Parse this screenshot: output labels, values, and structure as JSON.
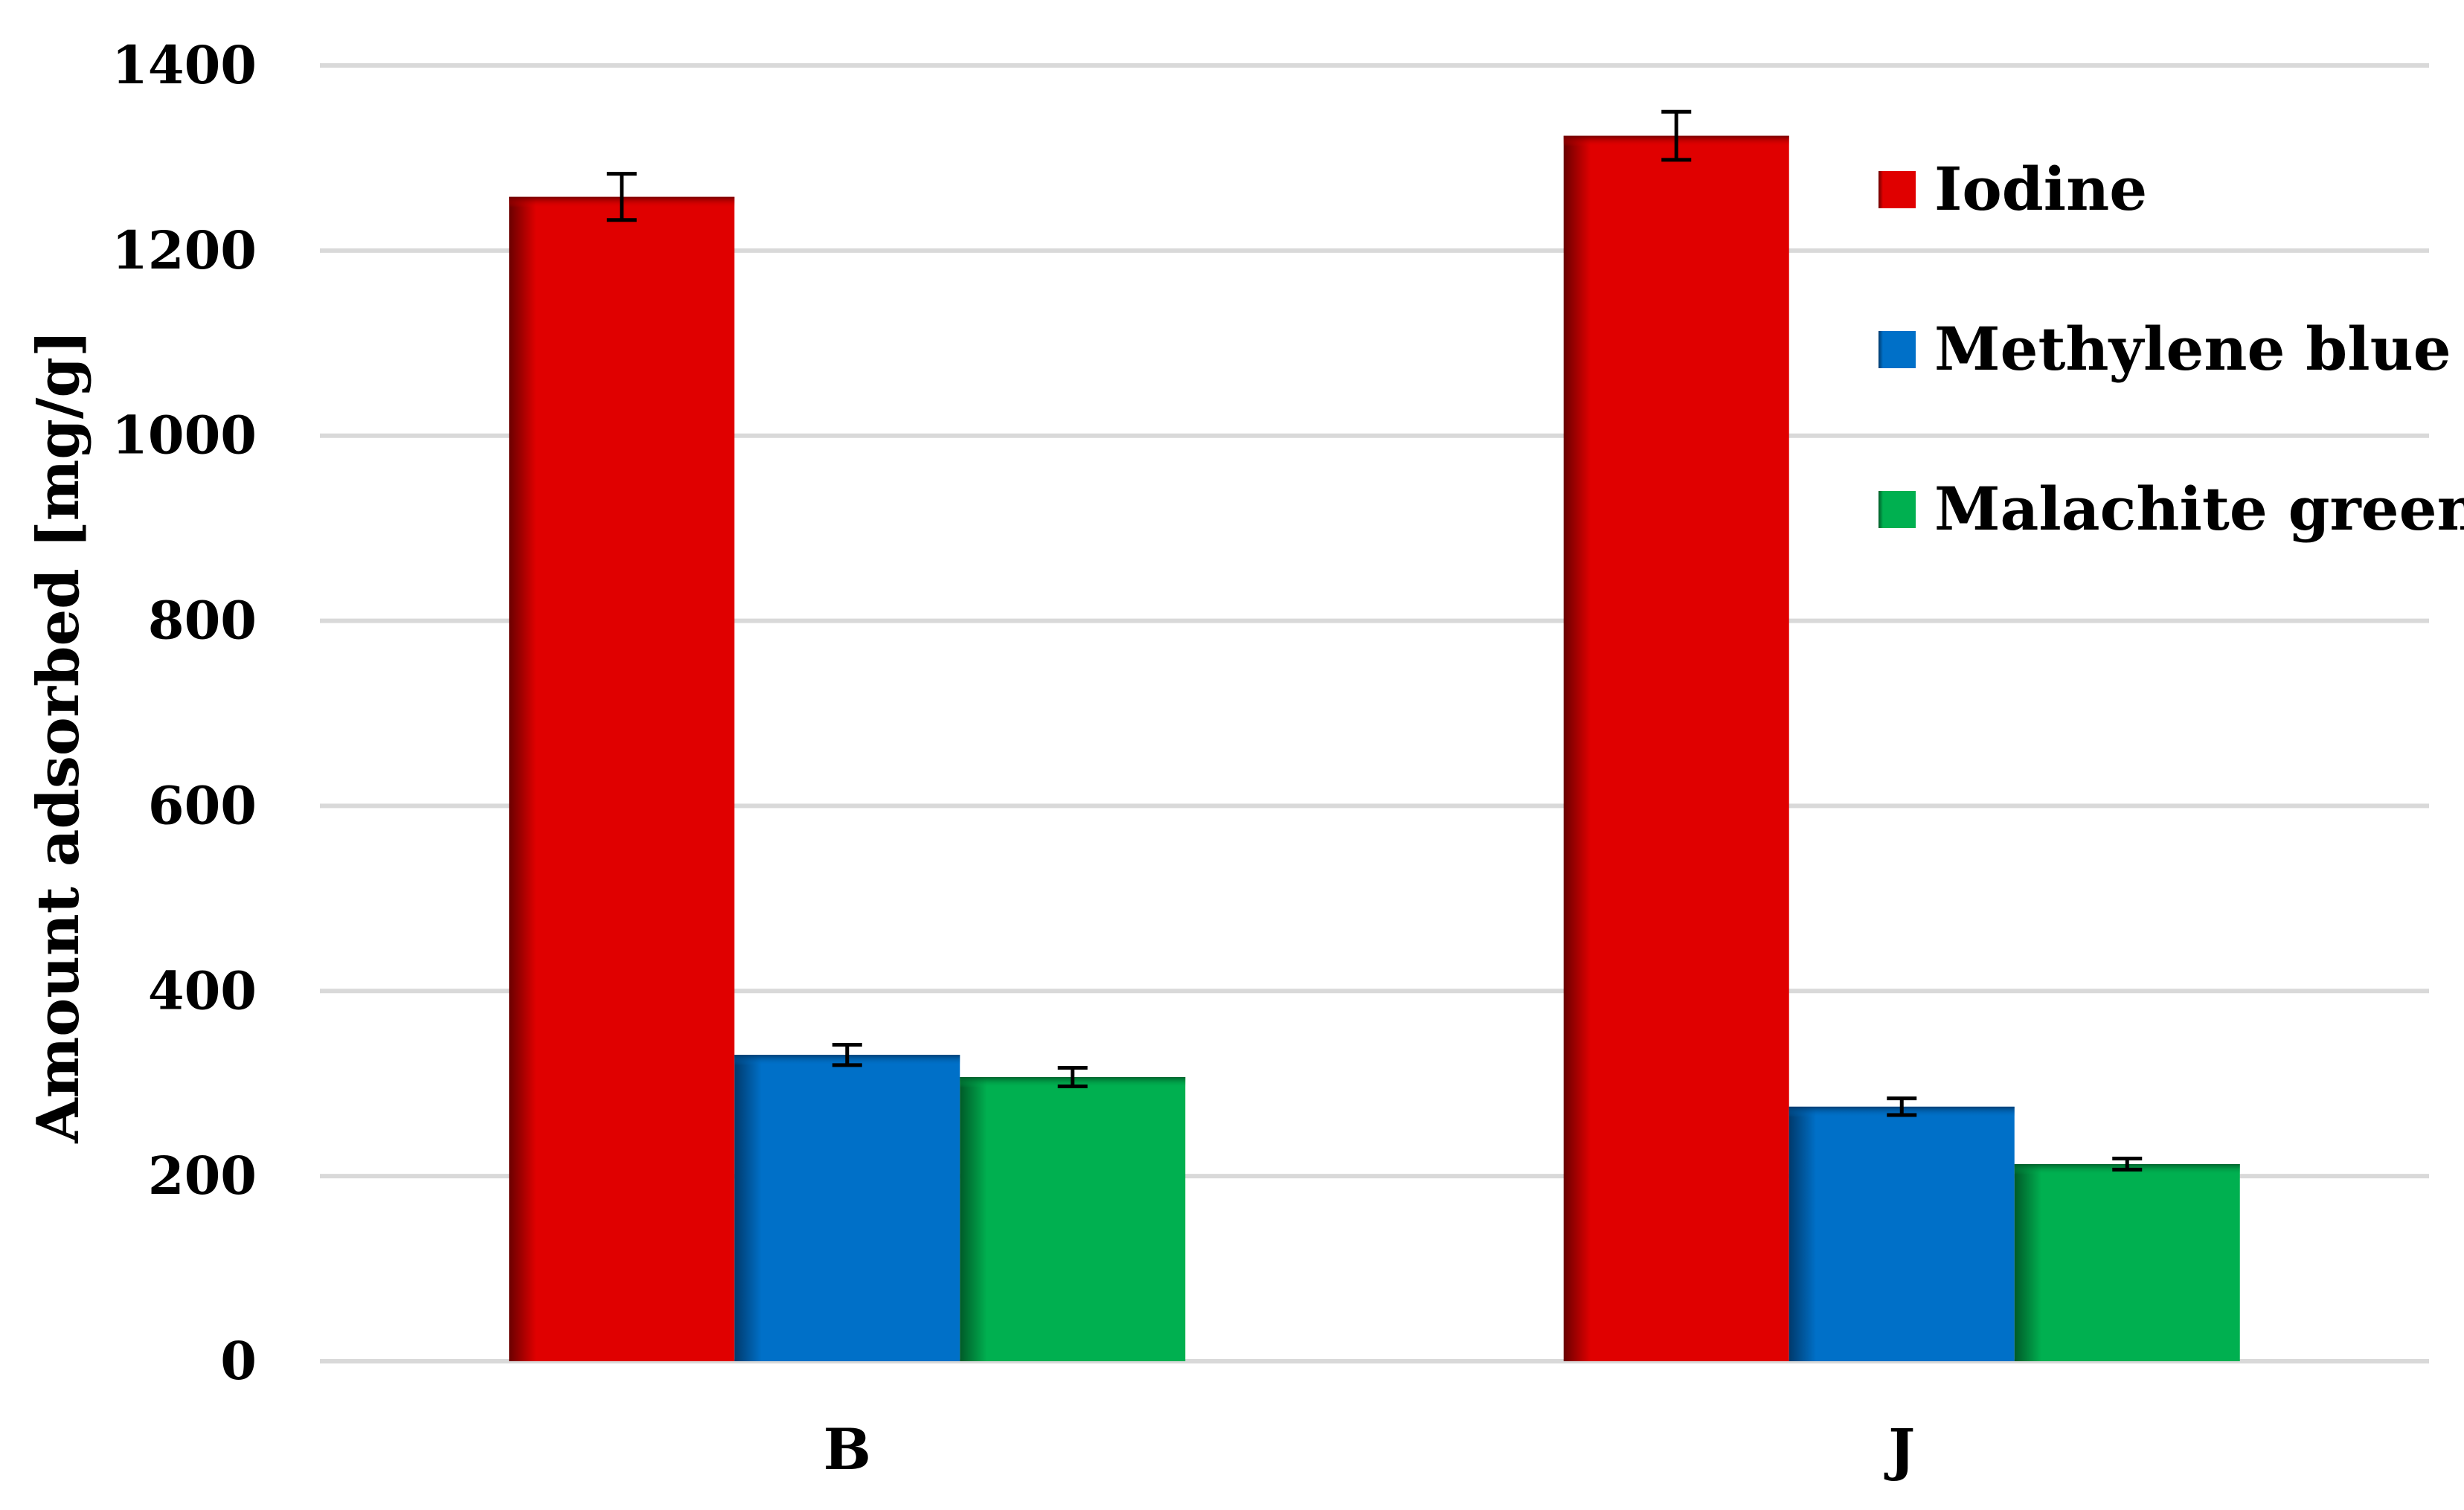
{
  "chart_data": {
    "type": "bar",
    "title": "",
    "xlabel": "",
    "ylabel": "Amount adsorbed [mg/g]",
    "categories": [
      "B",
      "J"
    ],
    "ylim": [
      0,
      1400
    ],
    "yticks": [
      0,
      200,
      400,
      600,
      800,
      1000,
      1200,
      1400
    ],
    "grid": true,
    "legend_position": "top-right",
    "series": [
      {
        "name": "Iodine",
        "values": [
          1258,
          1324
        ],
        "errors": [
          25,
          26
        ],
        "color": "#e00000",
        "dark_color": "#6a0000"
      },
      {
        "name": "Methylene blue",
        "values": [
          331,
          275
        ],
        "errors": [
          11,
          9
        ],
        "color": "#0070c8",
        "dark_color": "#003a6c"
      },
      {
        "name": "Malachite green",
        "values": [
          307,
          213
        ],
        "errors": [
          10,
          6
        ],
        "color": "#00b050",
        "dark_color": "#005a28"
      }
    ]
  }
}
